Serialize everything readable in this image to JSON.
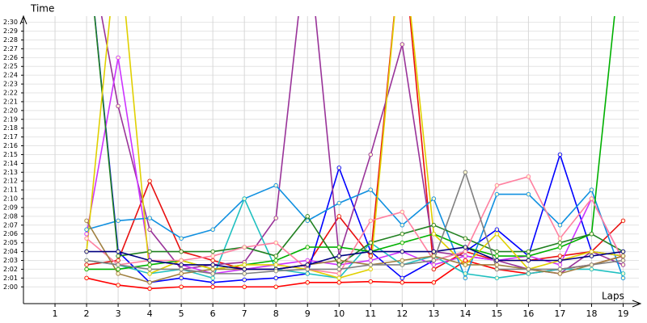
{
  "chart_data": {
    "type": "line",
    "y_label": "Time",
    "x_label": "Laps",
    "grid": true,
    "x": [
      1,
      2,
      3,
      4,
      5,
      6,
      7,
      8,
      9,
      10,
      11,
      12,
      13,
      14,
      15,
      16,
      17,
      18,
      19
    ],
    "xlim": [
      0,
      19.5
    ],
    "xticks": [
      1,
      2,
      3,
      4,
      5,
      6,
      7,
      8,
      9,
      10,
      11,
      12,
      13,
      14,
      15,
      16,
      17,
      18,
      19
    ],
    "ylim": [
      118.1,
      150.7
    ],
    "yticks": [
      {
        "value": 120,
        "label": "2:00"
      },
      {
        "value": 121,
        "label": "2:01"
      },
      {
        "value": 122,
        "label": "2:02"
      },
      {
        "value": 123,
        "label": "2:03"
      },
      {
        "value": 124,
        "label": "2:04"
      },
      {
        "value": 125,
        "label": "2:05"
      },
      {
        "value": 126,
        "label": "2:06"
      },
      {
        "value": 127,
        "label": "2:07"
      },
      {
        "value": 128,
        "label": "2:08"
      },
      {
        "value": 129,
        "label": "2:09"
      },
      {
        "value": 130,
        "label": "2:10"
      },
      {
        "value": 131,
        "label": "2:11"
      },
      {
        "value": 132,
        "label": "2:12"
      },
      {
        "value": 133,
        "label": "2:13"
      },
      {
        "value": 134,
        "label": "2:14"
      },
      {
        "value": 135,
        "label": "2:15"
      },
      {
        "value": 136,
        "label": "2:16"
      },
      {
        "value": 137,
        "label": "2:17"
      },
      {
        "value": 138,
        "label": "2:18"
      },
      {
        "value": 139,
        "label": "2:19"
      },
      {
        "value": 140,
        "label": "2:20"
      },
      {
        "value": 141,
        "label": "2:21"
      },
      {
        "value": 142,
        "label": "2:22"
      },
      {
        "value": 143,
        "label": "2:23"
      },
      {
        "value": 144,
        "label": "2:24"
      },
      {
        "value": 145,
        "label": "2:25"
      },
      {
        "value": 146,
        "label": "2:26"
      },
      {
        "value": 147,
        "label": "2:27"
      },
      {
        "value": 148,
        "label": "2:28"
      },
      {
        "value": 149,
        "label": "2:29"
      },
      {
        "value": 150,
        "label": "2:30"
      }
    ],
    "series": [
      {
        "color": "#ff0000",
        "values": [
          null,
          121,
          120.2,
          119.8,
          120,
          120,
          120,
          120,
          120.5,
          120.5,
          120.6,
          120.5,
          120.5,
          123,
          122,
          121.5,
          122,
          122.5,
          123.5
        ]
      },
      {
        "color": "#e81010",
        "values": [
          null,
          122.5,
          123,
          132,
          124,
          123,
          122,
          122,
          122.5,
          128,
          123.5,
          160,
          122,
          124,
          123,
          123,
          123.5,
          124,
          127.5
        ]
      },
      {
        "color": "#0000ff",
        "values": [
          null,
          160,
          124,
          120.5,
          121,
          120.5,
          120.8,
          121,
          121.5,
          133.5,
          124,
          121,
          123,
          124,
          126.5,
          123.5,
          135,
          124,
          123.5
        ]
      },
      {
        "color": "#993399",
        "values": [
          null,
          160,
          140.5,
          126.5,
          122,
          122.5,
          122.8,
          127.8,
          160,
          123.5,
          135,
          147.5,
          124,
          123.5,
          123,
          122,
          121.5,
          124,
          122.5
        ]
      },
      {
        "color": "#cc33ff",
        "values": [
          null,
          126,
          146,
          123,
          122.5,
          121.5,
          122,
          122.5,
          123,
          122.5,
          123,
          124,
          122.5,
          123.5,
          123,
          123.5,
          122.5,
          130,
          123
        ]
      },
      {
        "color": "#1090e0",
        "values": [
          null,
          126.5,
          127.5,
          127.8,
          125.5,
          126.5,
          130,
          131.5,
          127.5,
          129.5,
          131,
          127,
          130,
          121,
          130.5,
          130.5,
          127,
          131,
          121
        ]
      },
      {
        "color": "#20c0c0",
        "values": [
          null,
          123,
          122.5,
          121.5,
          122,
          121,
          130,
          122,
          121.5,
          121,
          125,
          122.5,
          123.5,
          121.5,
          121,
          121.5,
          122,
          122,
          121.5
        ]
      },
      {
        "color": "#00b000",
        "values": [
          null,
          122,
          122,
          122.5,
          123,
          122,
          122.5,
          123,
          124.5,
          124.5,
          124,
          125,
          126,
          124.5,
          123.5,
          123.5,
          124.5,
          126,
          160
        ]
      },
      {
        "color": "#208020",
        "values": [
          null,
          160,
          123.5,
          124,
          124,
          124,
          124.5,
          123.5,
          128,
          122.5,
          125,
          126,
          127,
          125.5,
          124,
          124,
          125,
          126,
          124
        ]
      },
      {
        "color": "#e0d000",
        "values": [
          null,
          124,
          160,
          121.5,
          123,
          122,
          122.5,
          122.5,
          122,
          121,
          122,
          160,
          126,
          122.5,
          126,
          122,
          123,
          124,
          123.5
        ]
      },
      {
        "color": "#ff80a0",
        "values": [
          null,
          125.5,
          122.5,
          123,
          123,
          123.5,
          124.5,
          125,
          122,
          121.5,
          127.5,
          128.5,
          123,
          124,
          131.5,
          132.5,
          125.5,
          130,
          123
        ]
      },
      {
        "color": "#a08040",
        "values": [
          null,
          127.5,
          121.5,
          120.5,
          121.5,
          122,
          122,
          122,
          122.5,
          123,
          122.5,
          123,
          123.5,
          122.5,
          122.5,
          122,
          121.5,
          122.5,
          123.5
        ]
      },
      {
        "color": "#000080",
        "values": [
          null,
          124,
          124,
          123,
          122.5,
          122.5,
          122,
          122,
          122.5,
          123.5,
          124,
          124,
          124,
          124.5,
          123,
          123,
          123,
          123.5,
          124
        ]
      },
      {
        "color": "#808080",
        "values": [
          null,
          123,
          122.5,
          122,
          122,
          121.5,
          121.5,
          121.8,
          122,
          122,
          122.5,
          122.5,
          123,
          133,
          122,
          122,
          122,
          122.5,
          123
        ]
      }
    ]
  }
}
